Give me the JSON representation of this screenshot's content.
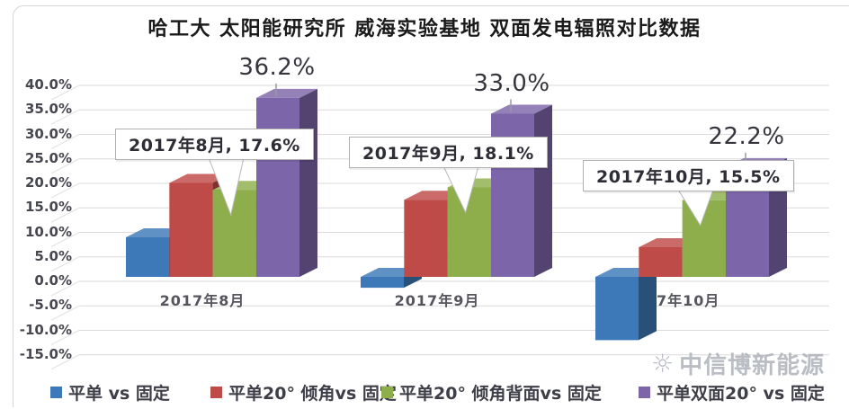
{
  "title": "哈工大 太阳能研究所 威海实验基地 双面发电辐照对比数据",
  "chart_data": {
    "type": "bar",
    "style": "3d-clustered-column",
    "title": "哈工大 太阳能研究所 威海实验基地 双面发电辐照对比数据",
    "categories": [
      "2017年8月",
      "2017年9月",
      "2017年10月"
    ],
    "series": [
      {
        "name": "平单 vs 固定",
        "color": "#3D79B8",
        "values": [
          8.0,
          -2.2,
          -12.8
        ]
      },
      {
        "name": "平单20° 倾角vs 固定",
        "color": "#BE4B48",
        "values": [
          19.0,
          15.6,
          6.0
        ]
      },
      {
        "name": "平单20° 倾角背面vs 固定",
        "color": "#8EAE4B",
        "values": [
          17.6,
          18.1,
          15.5
        ]
      },
      {
        "name": "平单双面20° vs 固定",
        "color": "#7C65A9",
        "values": [
          36.2,
          33.0,
          22.2
        ]
      }
    ],
    "ylim": [
      -15,
      40
    ],
    "ytick_step": 5,
    "ytick_format": "0.0%",
    "grid": true,
    "legend_position": "bottom",
    "value_labels": [
      "36.2%",
      "33.0%",
      "22.2%"
    ],
    "callouts": [
      "2017年8月, 17.6%",
      "2017年9月, 18.1%",
      "2017年10月, 15.5%"
    ]
  },
  "watermark": {
    "icon": "sun-logo",
    "text": "中信博新能源"
  }
}
